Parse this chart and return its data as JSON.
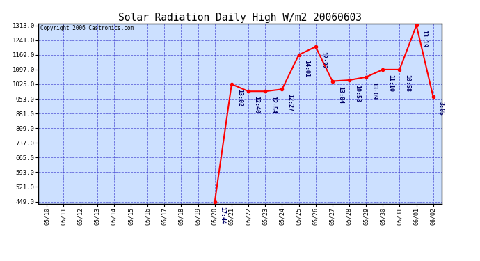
{
  "title": "Solar Radiation Daily High W/m2 20060603",
  "copyright": "Copyright 2006 Castronics.com",
  "dates": [
    "05/10",
    "05/11",
    "05/12",
    "05/13",
    "05/14",
    "05/15",
    "05/16",
    "05/17",
    "05/18",
    "05/19",
    "05/20",
    "05/21",
    "05/22",
    "05/23",
    "05/24",
    "05/25",
    "05/26",
    "05/27",
    "05/28",
    "05/29",
    "05/30",
    "05/31",
    "06/01",
    "06/02"
  ],
  "values": [
    null,
    null,
    null,
    null,
    null,
    null,
    null,
    null,
    null,
    null,
    449,
    1025,
    990,
    990,
    1000,
    1169,
    1209,
    1040,
    1045,
    1060,
    1097,
    1097,
    1314,
    963
  ],
  "point_labels": [
    null,
    null,
    null,
    null,
    null,
    null,
    null,
    null,
    null,
    null,
    "17:44",
    "13:02",
    "12:40",
    "12:54",
    "12:27",
    "14:01",
    "12:22",
    "13:04",
    "10:53",
    "13:09",
    "11:10",
    "10:58",
    "13:19",
    "3:05"
  ],
  "ylim_min": 439,
  "ylim_max": 1323,
  "yticks": [
    449.0,
    521.0,
    593.0,
    665.0,
    737.0,
    809.0,
    881.0,
    953.0,
    1025.0,
    1097.0,
    1169.0,
    1241.0,
    1313.0
  ],
  "bg_color": "#ffffff",
  "plot_bg_color": "#cce0ff",
  "grid_color": "#3333cc",
  "line_color": "#ff0000",
  "marker_color": "#ff0000",
  "point_label_color": "#000066",
  "title_color": "#000000",
  "copyright_color": "#000000",
  "axis_label_color": "#000000"
}
